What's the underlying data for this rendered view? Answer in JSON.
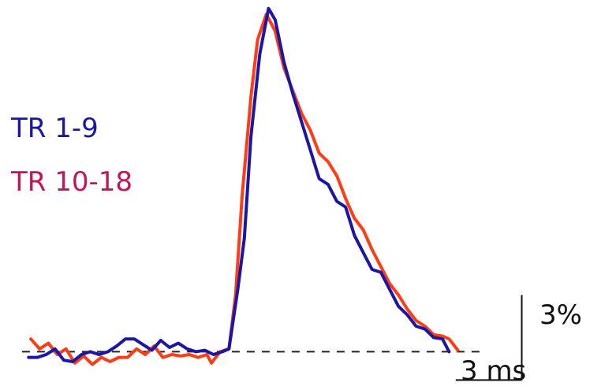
{
  "chart_data": {
    "type": "line",
    "title": "",
    "xlabel": "",
    "ylabel": "",
    "x_unit": "ms",
    "y_unit": "%",
    "xlim": [
      -9.6,
      17.7
    ],
    "ylim": [
      -1.35,
      12.4
    ],
    "baseline": 0,
    "scale_bars": {
      "x": {
        "value": 3,
        "label": "3 ms"
      },
      "y": {
        "value": 3,
        "label": "3%"
      }
    },
    "series": [
      {
        "name": "TR 1-9",
        "color": "#1a17a6",
        "points": [
          [
            -8.3,
            -0.2
          ],
          [
            -7.9,
            -0.2
          ],
          [
            -7.5,
            -0.1
          ],
          [
            -7.1,
            0.1
          ],
          [
            -6.7,
            -0.3
          ],
          [
            -6.3,
            -0.35
          ],
          [
            -5.9,
            -0.1
          ],
          [
            -5.5,
            0.0
          ],
          [
            -5.1,
            -0.1
          ],
          [
            -4.7,
            0.0
          ],
          [
            -4.3,
            0.2
          ],
          [
            -3.9,
            0.45
          ],
          [
            -3.5,
            0.45
          ],
          [
            -3.1,
            0.25
          ],
          [
            -2.7,
            0.05
          ],
          [
            -2.3,
            0.4
          ],
          [
            -1.9,
            0.15
          ],
          [
            -1.5,
            0.3
          ],
          [
            -1.1,
            0.1
          ],
          [
            -0.7,
            0.0
          ],
          [
            -0.3,
            0.05
          ],
          [
            0.1,
            -0.1
          ],
          [
            0.5,
            0.0
          ],
          [
            0.8,
            0.1
          ],
          [
            1.2,
            2.2
          ],
          [
            1.5,
            4.0
          ],
          [
            1.8,
            7.6
          ],
          [
            2.2,
            10.5
          ],
          [
            2.6,
            12.1
          ],
          [
            2.9,
            11.7
          ],
          [
            3.3,
            10.2
          ],
          [
            3.7,
            9.1
          ],
          [
            4.1,
            8.1
          ],
          [
            4.5,
            7.1
          ],
          [
            4.9,
            6.1
          ],
          [
            5.3,
            5.9
          ],
          [
            5.7,
            5.3
          ],
          [
            6.1,
            5.1
          ],
          [
            6.5,
            4.1
          ],
          [
            6.9,
            3.5
          ],
          [
            7.3,
            2.9
          ],
          [
            7.7,
            2.8
          ],
          [
            8.1,
            2.2
          ],
          [
            8.5,
            1.6
          ],
          [
            8.9,
            1.3
          ],
          [
            9.3,
            0.9
          ],
          [
            9.7,
            0.8
          ],
          [
            10.1,
            0.5
          ],
          [
            10.5,
            0.45
          ],
          [
            10.8,
            0.0
          ]
        ]
      },
      {
        "name": "TR 10-18",
        "color": "#ff3d14",
        "points": [
          [
            -8.2,
            0.45
          ],
          [
            -7.8,
            0.1
          ],
          [
            -7.4,
            0.3
          ],
          [
            -7.0,
            -0.1
          ],
          [
            -6.6,
            0.1
          ],
          [
            -6.2,
            -0.4
          ],
          [
            -5.8,
            -0.15
          ],
          [
            -5.4,
            -0.45
          ],
          [
            -5.0,
            -0.2
          ],
          [
            -4.6,
            -0.35
          ],
          [
            -4.2,
            -0.2
          ],
          [
            -3.8,
            -0.2
          ],
          [
            -3.4,
            0.1
          ],
          [
            -3.0,
            -0.1
          ],
          [
            -2.6,
            0.2
          ],
          [
            -2.2,
            -0.2
          ],
          [
            -1.8,
            -0.1
          ],
          [
            -1.4,
            -0.15
          ],
          [
            -1.0,
            -0.1
          ],
          [
            -0.6,
            -0.2
          ],
          [
            -0.2,
            -0.1
          ],
          [
            0.0,
            -0.4
          ],
          [
            0.4,
            0.0
          ],
          [
            0.8,
            0.1
          ],
          [
            1.1,
            2.0
          ],
          [
            1.4,
            5.5
          ],
          [
            1.8,
            9.0
          ],
          [
            2.1,
            11.0
          ],
          [
            2.5,
            11.9
          ],
          [
            2.9,
            11.3
          ],
          [
            3.3,
            10.0
          ],
          [
            3.7,
            9.2
          ],
          [
            4.1,
            8.4
          ],
          [
            4.5,
            7.8
          ],
          [
            4.9,
            7.0
          ],
          [
            5.3,
            6.7
          ],
          [
            5.7,
            6.2
          ],
          [
            6.1,
            5.4
          ],
          [
            6.5,
            4.7
          ],
          [
            6.9,
            4.3
          ],
          [
            7.3,
            3.6
          ],
          [
            7.7,
            3.0
          ],
          [
            8.1,
            2.4
          ],
          [
            8.5,
            2.0
          ],
          [
            8.9,
            1.5
          ],
          [
            9.3,
            1.1
          ],
          [
            9.7,
            0.9
          ],
          [
            10.1,
            0.6
          ],
          [
            10.5,
            0.55
          ],
          [
            10.8,
            0.45
          ],
          [
            11.2,
            0.05
          ]
        ]
      }
    ]
  }
}
